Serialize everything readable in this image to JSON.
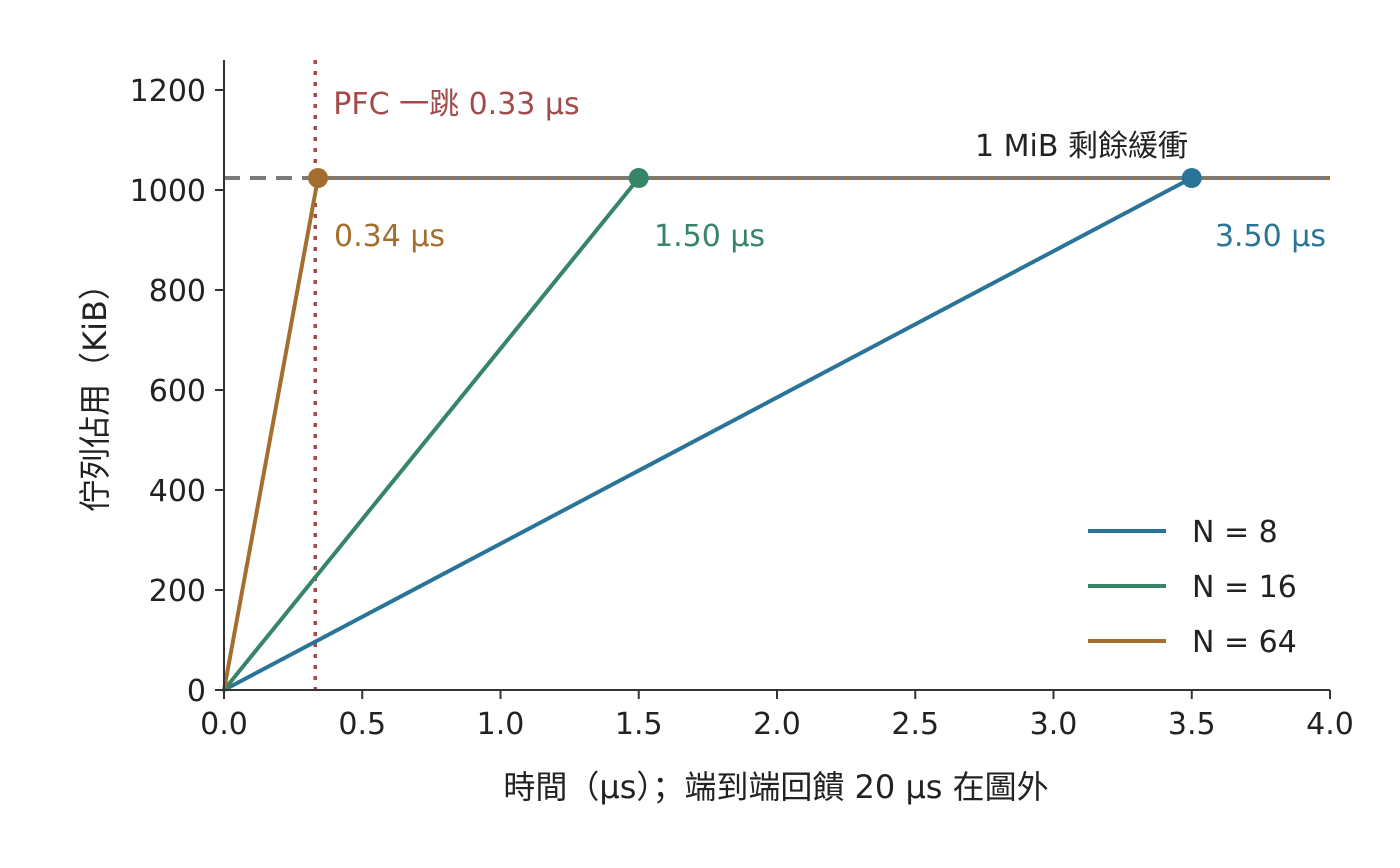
{
  "chart_data": {
    "type": "line",
    "title": "",
    "xlabel": "時間（µs）；端到端回饋 20 µs 在圖外",
    "ylabel": "佇列佔用（KiB）",
    "xlim": [
      0,
      4
    ],
    "ylim": [
      0,
      1260
    ],
    "xticks": [
      0.0,
      0.5,
      1.0,
      1.5,
      2.0,
      2.5,
      3.0,
      3.5,
      4.0
    ],
    "xtick_labels": [
      "0.0",
      "0.5",
      "1.0",
      "1.5",
      "2.0",
      "2.5",
      "3.0",
      "3.5",
      "4.0"
    ],
    "yticks": [
      0,
      200,
      400,
      600,
      800,
      1000,
      1200
    ],
    "ytick_labels": [
      "0",
      "200",
      "400",
      "600",
      "800",
      "1000",
      "1200"
    ],
    "grid": false,
    "legend_position": "lower-right",
    "series": [
      {
        "name": "N = 8",
        "color": "#2a7597",
        "x": [
          0,
          3.5
        ],
        "y": [
          0,
          1024
        ],
        "marker_x": 3.5,
        "marker_y": 1024,
        "annotation": "3.50 µs"
      },
      {
        "name": "N = 16",
        "color": "#378567",
        "x": [
          0,
          1.5
        ],
        "y": [
          0,
          1024
        ],
        "marker_x": 1.5,
        "marker_y": 1024,
        "annotation": "1.50 µs"
      },
      {
        "name": "N = 64",
        "color": "#a46f2e",
        "x": [
          0,
          0.34
        ],
        "y": [
          0,
          1024
        ],
        "marker_x": 0.34,
        "marker_y": 1024,
        "annotation": "0.34 µs"
      }
    ],
    "reference_lines": {
      "buffer": {
        "y": 1024,
        "label": "1 MiB 剩餘緩衝",
        "color": "#7a7a7a"
      },
      "pfc": {
        "x": 0.33,
        "label": "PFC 一跳 0.33 µs",
        "color": "#a34a4a"
      }
    }
  }
}
